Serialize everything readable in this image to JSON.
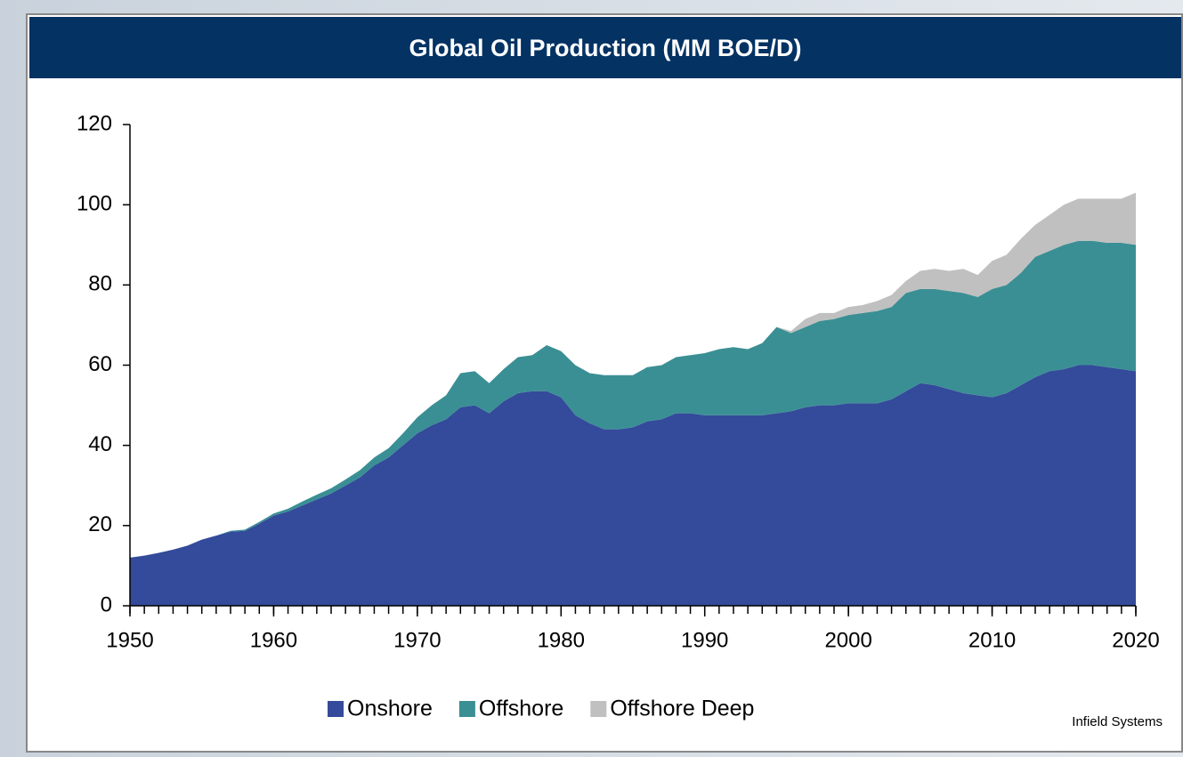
{
  "chart_data": {
    "type": "stacked_area",
    "title": "Global Oil Production (MM BOE/D)",
    "source": "Infield Systems",
    "x": [
      1950,
      1951,
      1952,
      1953,
      1954,
      1955,
      1956,
      1957,
      1958,
      1959,
      1960,
      1961,
      1962,
      1963,
      1964,
      1965,
      1966,
      1967,
      1968,
      1969,
      1970,
      1971,
      1972,
      1973,
      1974,
      1975,
      1976,
      1977,
      1978,
      1979,
      1980,
      1981,
      1982,
      1983,
      1984,
      1985,
      1986,
      1987,
      1988,
      1989,
      1990,
      1991,
      1992,
      1993,
      1994,
      1995,
      1996,
      1997,
      1998,
      1999,
      2000,
      2001,
      2002,
      2003,
      2004,
      2005,
      2006,
      2007,
      2008,
      2009,
      2010,
      2011,
      2012,
      2013,
      2014,
      2015,
      2016,
      2017,
      2018,
      2019,
      2020
    ],
    "series": [
      {
        "name": "Onshore",
        "color": "#344a9a",
        "values": [
          12,
          12.5,
          13.2,
          14,
          15,
          16.5,
          17.5,
          18.5,
          18.7,
          20.5,
          22.5,
          23.5,
          25,
          26.5,
          28,
          30,
          32,
          35,
          37,
          40,
          43,
          45,
          46.5,
          49.5,
          50,
          48,
          51,
          53,
          53.5,
          53.5,
          52,
          47.5,
          45.5,
          44,
          44,
          44.5,
          46,
          46.5,
          48,
          48,
          47.5,
          47.5,
          47.5,
          47.5,
          47.5,
          48,
          48.5,
          49.5,
          50,
          50,
          50.5,
          50.5,
          50.5,
          51.5,
          53.5,
          55.5,
          55,
          54,
          53,
          52.5,
          52,
          53,
          55,
          57,
          58.5,
          59,
          60,
          60,
          59.5,
          59,
          58.5
        ]
      },
      {
        "name": "Offshore",
        "color": "#3a8f94",
        "values": [
          0,
          0,
          0,
          0,
          0,
          0,
          0,
          0.2,
          0.3,
          0.4,
          0.5,
          0.7,
          1,
          1.2,
          1.3,
          1.5,
          1.8,
          2,
          2.3,
          3,
          4,
          5,
          6,
          8.5,
          8.5,
          7.5,
          8,
          9,
          9,
          11.5,
          11.5,
          12.5,
          12.5,
          13.5,
          13.5,
          13,
          13.5,
          13.5,
          14,
          14.5,
          15.5,
          16.5,
          17,
          16.5,
          18,
          21.5,
          19.5,
          20,
          21,
          21.5,
          22,
          22.5,
          23,
          23,
          24.5,
          23.5,
          24,
          24.5,
          25,
          24.5,
          27,
          27,
          28,
          30,
          30,
          31,
          31,
          31,
          31,
          31.5,
          31.5
        ]
      },
      {
        "name": "Offshore Deep",
        "color": "#c0c0c0",
        "values": [
          0,
          0,
          0,
          0,
          0,
          0,
          0,
          0,
          0,
          0,
          0,
          0,
          0,
          0,
          0,
          0,
          0,
          0,
          0,
          0,
          0,
          0,
          0,
          0,
          0,
          0,
          0,
          0,
          0,
          0,
          0,
          0,
          0,
          0,
          0,
          0,
          0,
          0,
          0,
          0,
          0,
          0,
          0,
          0,
          0,
          0,
          0.5,
          2,
          2,
          1.5,
          2,
          2,
          2.5,
          3,
          3,
          4.5,
          5,
          5,
          6,
          5.5,
          7,
          7.5,
          8.5,
          8,
          9,
          10,
          10.5,
          10.5,
          11,
          11,
          13
        ]
      }
    ],
    "xlim": [
      1950,
      2020
    ],
    "xticks": [
      1950,
      1960,
      1970,
      1980,
      1990,
      2000,
      2010,
      2020
    ],
    "ylim": [
      0,
      120
    ],
    "yticks": [
      0,
      20,
      40,
      60,
      80,
      100,
      120
    ]
  }
}
